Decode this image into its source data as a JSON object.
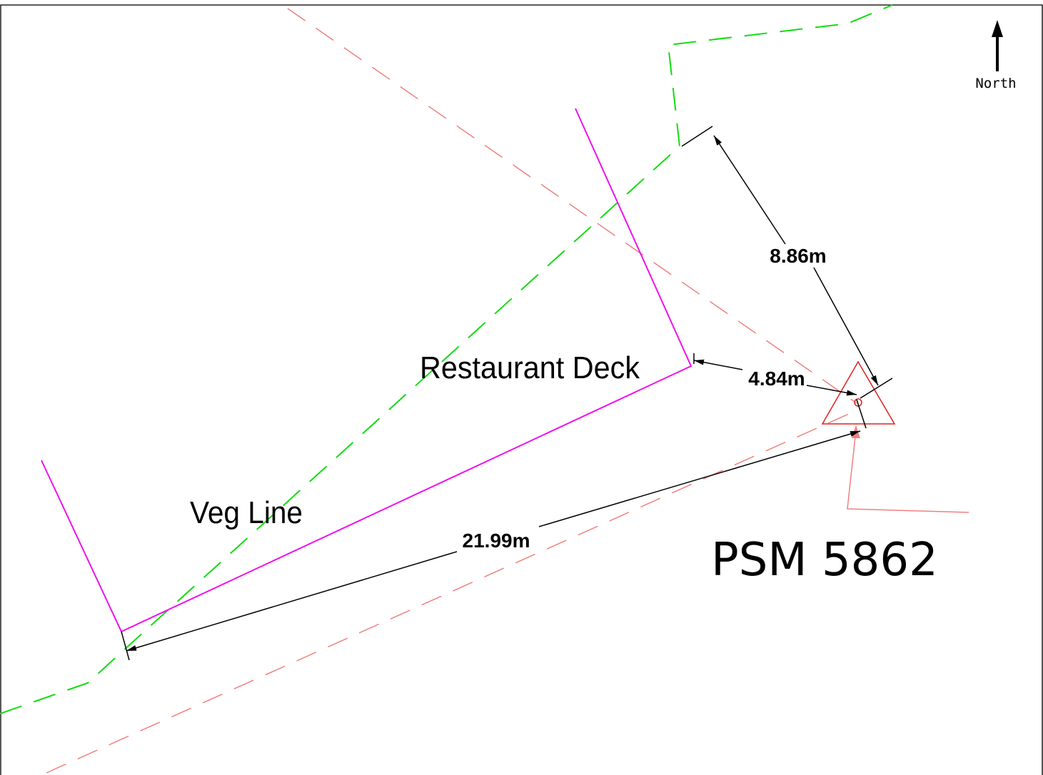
{
  "north_label": "North",
  "labels": {
    "restaurant_deck": "Restaurant Deck",
    "veg_line": "Veg Line",
    "psm": "PSM 5862"
  },
  "dimensions": [
    "8.86m",
    "4.84m",
    "21.99m"
  ]
}
